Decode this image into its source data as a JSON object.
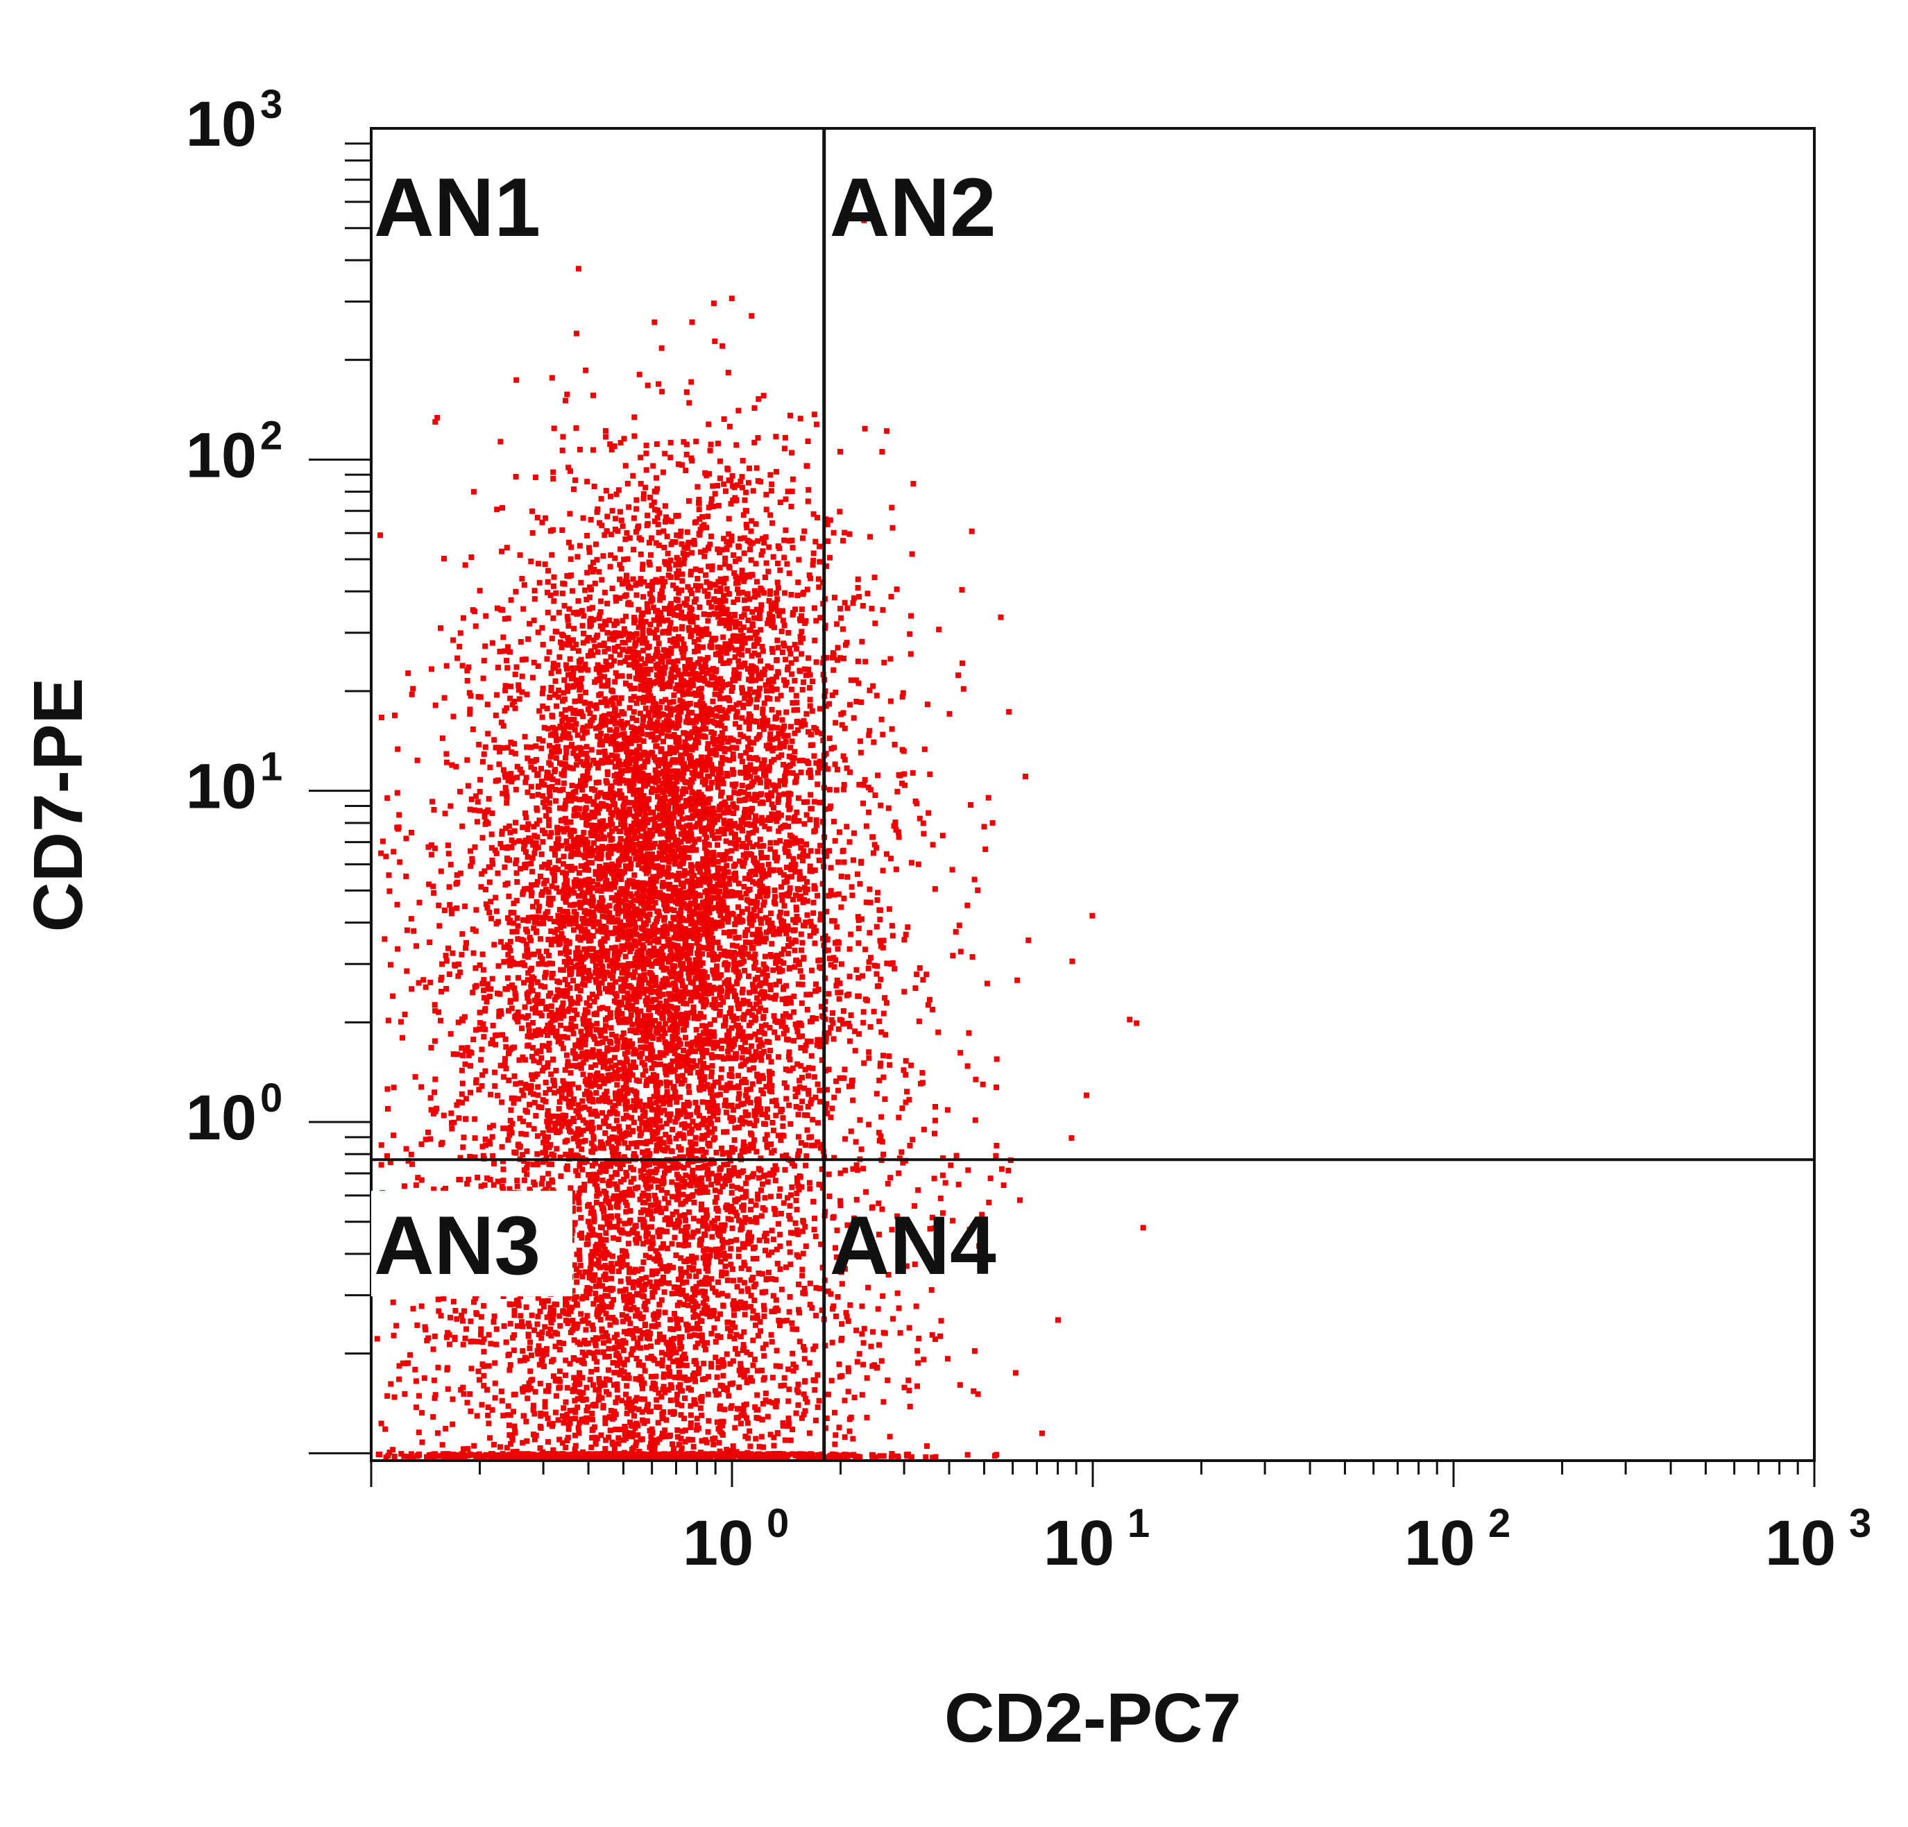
{
  "chart_data": {
    "type": "scatter",
    "plot_kind": "flow cytometry dot plot",
    "xlabel": "CD2-PC7",
    "ylabel": "CD7-PE",
    "x_scale": "log",
    "y_scale": "log",
    "xlim": [
      0.1,
      1000
    ],
    "ylim": [
      0.095,
      1000
    ],
    "x_ticks": [
      {
        "value": 1,
        "base": "10",
        "exp": "0"
      },
      {
        "value": 10,
        "base": "10",
        "exp": "1"
      },
      {
        "value": 100,
        "base": "10",
        "exp": "2"
      },
      {
        "value": 1000,
        "base": "10",
        "exp": "3"
      }
    ],
    "y_ticks": [
      {
        "value": 1,
        "base": "10",
        "exp": "0"
      },
      {
        "value": 10,
        "base": "10",
        "exp": "1"
      },
      {
        "value": 100,
        "base": "10",
        "exp": "2"
      },
      {
        "value": 1000,
        "base": "10",
        "exp": "3"
      }
    ],
    "gates": {
      "x": 1.8,
      "y": 0.77
    },
    "quadrants": [
      {
        "label": "AN1",
        "position": "upper-left"
      },
      {
        "label": "AN2",
        "position": "upper-right"
      },
      {
        "label": "AN3",
        "position": "lower-left"
      },
      {
        "label": "AN4",
        "position": "lower-right"
      }
    ],
    "populations": [
      {
        "role": "main-population",
        "x_center": 0.52,
        "y_center": 0.25,
        "x_spread_decades": 0.3,
        "y_spread_decades": 0.55,
        "count": 3200
      },
      {
        "role": "diagonal-tail",
        "x_center": 0.62,
        "y_center": 5.0,
        "x_spread_decades": 0.24,
        "y_spread_decades": 0.5,
        "count": 5200
      },
      {
        "role": "high-cd7-tail",
        "x_center": 0.75,
        "y_center": 25.0,
        "x_spread_decades": 0.22,
        "y_spread_decades": 0.35,
        "count": 1300
      },
      {
        "role": "sparse-scatter",
        "x_center": 0.55,
        "y_center": 1.0,
        "x_spread_decades": 0.45,
        "y_spread_decades": 0.8,
        "count": 1500
      },
      {
        "role": "right-of-gate",
        "x_center": 2.3,
        "y_center": 3.0,
        "x_spread_decades": 0.15,
        "y_spread_decades": 0.6,
        "count": 160
      }
    ],
    "point_color": "#ee0000",
    "grid": false,
    "legend": "none"
  }
}
